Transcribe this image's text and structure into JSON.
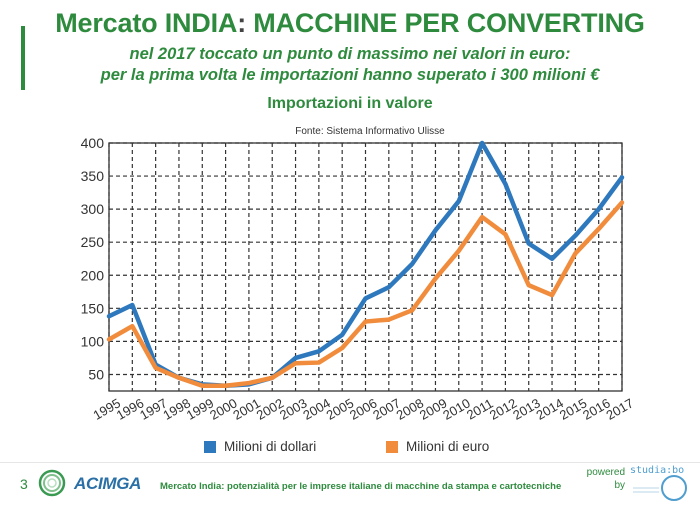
{
  "header": {
    "title_prefix": "Mercato INDIA",
    "title_colon": ":",
    "title_suffix": " MACCHINE PER CONVERTING",
    "subtitle_line1": "nel 2017 toccato un punto di massimo nei valori in euro:",
    "subtitle_line2": "per la prima volta le importazioni hanno superato i 300 milioni €"
  },
  "chart_title": "Importazioni in valore",
  "source": "Fonte: Sistema Informativo Ulisse",
  "chart_data": {
    "type": "line",
    "title": "Importazioni in valore",
    "x": [
      "1995",
      "1996",
      "1997",
      "1998",
      "1999",
      "2000",
      "2001",
      "2002",
      "2003",
      "2004",
      "2005",
      "2006",
      "2007",
      "2008",
      "2009",
      "2010",
      "2011",
      "2012",
      "2013",
      "2014",
      "2015",
      "2016",
      "2017"
    ],
    "ylim": [
      25,
      400
    ],
    "yticks": [
      50,
      100,
      150,
      200,
      250,
      300,
      350,
      400
    ],
    "grid": true,
    "legend_position": "bottom",
    "series": [
      {
        "name": "Milioni di dollari",
        "color": "#2e78bd",
        "values": [
          138,
          155,
          65,
          45,
          35,
          33,
          35,
          45,
          75,
          85,
          110,
          165,
          182,
          217,
          268,
          312,
          400,
          338,
          248,
          225,
          260,
          300,
          348
        ]
      },
      {
        "name": "Milioni di euro",
        "color": "#f08c3c",
        "values": [
          103,
          123,
          60,
          45,
          33,
          33,
          37,
          45,
          67,
          68,
          90,
          130,
          133,
          147,
          195,
          237,
          288,
          262,
          185,
          170,
          233,
          270,
          310
        ]
      }
    ]
  },
  "footer": {
    "page_number": "3",
    "logo_name": "ACIMGA",
    "text": "Mercato India: potenzialità per le imprese italiane di macchine da stampa e cartotecniche",
    "powered_line1": "powered",
    "powered_line2": "by",
    "partner_logo": "studia:bo"
  },
  "colors": {
    "accent_green": "#2e8b3e",
    "blue": "#2e78bd",
    "orange": "#f08c3c"
  }
}
